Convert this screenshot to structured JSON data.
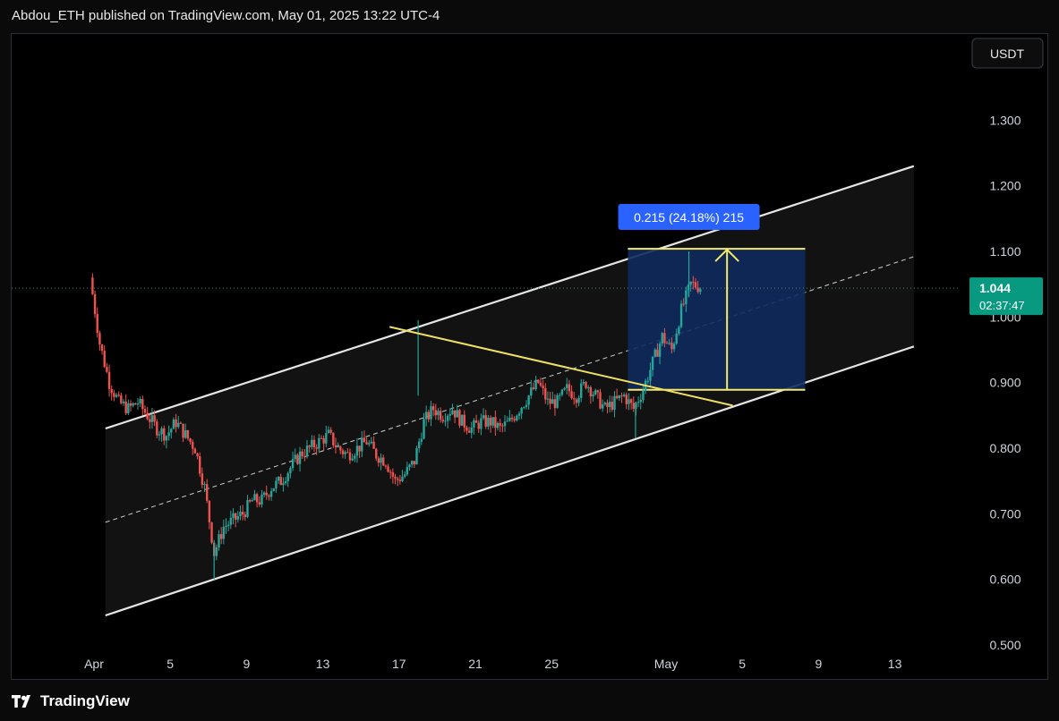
{
  "header": {
    "published_text": "Abdou_ETH published on TradingView.com, May 01, 2025 13:22 UTC-4"
  },
  "footer": {
    "brand": "TradingView"
  },
  "chart_data": {
    "type": "candlestick",
    "currency": "USDT",
    "ylim": [
      0.5,
      1.35
    ],
    "y_ticks": [
      {
        "label": "1.300",
        "value": 1.3
      },
      {
        "label": "1.200",
        "value": 1.2
      },
      {
        "label": "1.100",
        "value": 1.1
      },
      {
        "label": "1.000",
        "value": 1.0
      },
      {
        "label": "0.900",
        "value": 0.9
      },
      {
        "label": "0.800",
        "value": 0.8
      },
      {
        "label": "0.700",
        "value": 0.7
      },
      {
        "label": "0.600",
        "value": 0.6
      },
      {
        "label": "0.500",
        "value": 0.5
      }
    ],
    "x_ticks": [
      {
        "label": "Apr",
        "day": 1
      },
      {
        "label": "5",
        "day": 5
      },
      {
        "label": "9",
        "day": 9
      },
      {
        "label": "13",
        "day": 13
      },
      {
        "label": "17",
        "day": 17
      },
      {
        "label": "21",
        "day": 21
      },
      {
        "label": "25",
        "day": 25
      },
      {
        "label": "May",
        "day": 31
      },
      {
        "label": "5",
        "day": 35
      },
      {
        "label": "9",
        "day": 39
      },
      {
        "label": "13",
        "day": 43
      }
    ],
    "last_price": {
      "value": 1.044,
      "label": "1.044",
      "countdown": "02:37:47"
    },
    "colors": {
      "up": "#26a69a",
      "down": "#ef5350",
      "channel": "#e6e6e6",
      "trendline": "#f0e060",
      "measure": "#f7e96a",
      "measure_fill": "#102a5c",
      "label_bg": "#2962ff",
      "price_badge": "#089981"
    },
    "price_path": [
      [
        0.0,
        1.06
      ],
      [
        0.5,
        0.96
      ],
      [
        1.0,
        0.9
      ],
      [
        1.5,
        0.87
      ],
      [
        2.0,
        0.86
      ],
      [
        2.5,
        0.87
      ],
      [
        3.0,
        0.85
      ],
      [
        3.5,
        0.83
      ],
      [
        4.0,
        0.82
      ],
      [
        4.5,
        0.84
      ],
      [
        5.0,
        0.82
      ],
      [
        5.5,
        0.8
      ],
      [
        6.0,
        0.74
      ],
      [
        6.5,
        0.64
      ],
      [
        7.0,
        0.68
      ],
      [
        7.5,
        0.69
      ],
      [
        8.0,
        0.7
      ],
      [
        8.5,
        0.72
      ],
      [
        9.0,
        0.72
      ],
      [
        9.5,
        0.74
      ],
      [
        10.0,
        0.75
      ],
      [
        10.5,
        0.77
      ],
      [
        11.0,
        0.79
      ],
      [
        11.5,
        0.8
      ],
      [
        12.0,
        0.81
      ],
      [
        12.5,
        0.82
      ],
      [
        13.0,
        0.8
      ],
      [
        13.5,
        0.79
      ],
      [
        14.0,
        0.8
      ],
      [
        14.5,
        0.81
      ],
      [
        15.0,
        0.79
      ],
      [
        15.5,
        0.78
      ],
      [
        16.0,
        0.75
      ],
      [
        16.5,
        0.76
      ],
      [
        17.0,
        0.78
      ],
      [
        17.5,
        0.84
      ],
      [
        18.0,
        0.86
      ],
      [
        18.5,
        0.85
      ],
      [
        19.0,
        0.86
      ],
      [
        19.5,
        0.84
      ],
      [
        20.0,
        0.83
      ],
      [
        20.5,
        0.84
      ],
      [
        21.0,
        0.84
      ],
      [
        21.5,
        0.83
      ],
      [
        22.0,
        0.84
      ],
      [
        22.5,
        0.86
      ],
      [
        23.0,
        0.88
      ],
      [
        23.5,
        0.9
      ],
      [
        24.0,
        0.87
      ],
      [
        24.5,
        0.87
      ],
      [
        25.0,
        0.89
      ],
      [
        25.5,
        0.88
      ],
      [
        26.0,
        0.9
      ],
      [
        26.5,
        0.88
      ],
      [
        27.0,
        0.86
      ],
      [
        27.5,
        0.87
      ],
      [
        28.0,
        0.88
      ],
      [
        28.5,
        0.86
      ],
      [
        29.0,
        0.89
      ],
      [
        29.5,
        0.93
      ],
      [
        30.0,
        0.97
      ],
      [
        30.5,
        0.95
      ],
      [
        31.0,
        1.01
      ],
      [
        31.5,
        1.05
      ],
      [
        32.0,
        1.046
      ]
    ],
    "wicks": [
      {
        "day": 17.2,
        "high": 0.995,
        "low": 0.88
      },
      {
        "day": 31.4,
        "high": 1.1,
        "low": 1.03
      },
      {
        "day": 6.5,
        "high": 0.66,
        "low": 0.6
      },
      {
        "day": 28.6,
        "high": 0.87,
        "low": 0.815
      }
    ],
    "channel": {
      "upper": [
        [
          1.6,
          0.83
        ],
        [
          44.0,
          1.23
        ]
      ],
      "lower": [
        [
          1.6,
          0.545
        ],
        [
          44.0,
          0.955
        ]
      ],
      "mid": [
        [
          1.6,
          0.687
        ],
        [
          44.0,
          1.092
        ]
      ]
    },
    "trendline": [
      [
        16.5,
        0.985
      ],
      [
        34.5,
        0.865
      ]
    ],
    "measure": {
      "x_start": 29.0,
      "x_end": 38.3,
      "x_arrow": 34.2,
      "low": 0.889,
      "high": 1.104,
      "label": "0.215 (24.18%) 215"
    }
  }
}
